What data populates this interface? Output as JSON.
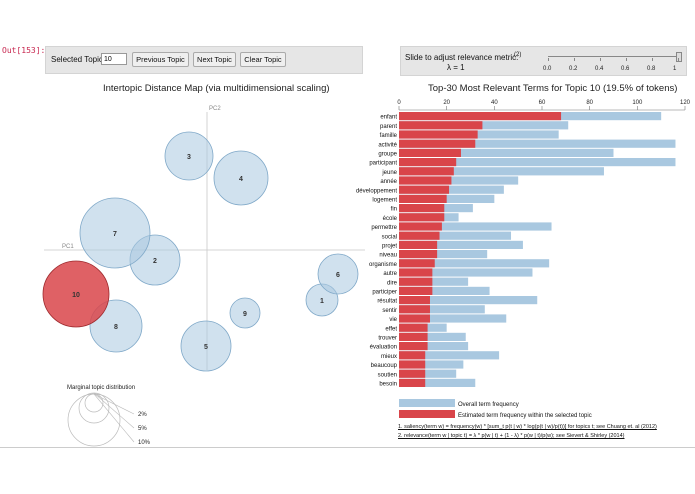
{
  "cell_prompt": "Out[153]:",
  "controls": {
    "selected_topic_label": "Selected Topic:",
    "selected_topic_value": "10",
    "prev_label": "Previous Topic",
    "next_label": "Next Topic",
    "clear_label": "Clear Topic",
    "slider_label": "Slide to adjust relevance metric:",
    "slider_help": "(2)",
    "lambda_label": "λ = 1",
    "lambda_value": 1,
    "slider_ticks": [
      "0.0",
      "0.2",
      "0.4",
      "0.6",
      "0.8",
      "1"
    ]
  },
  "left": {
    "title": "Intertopic Distance Map (via multidimensional scaling)",
    "pc1": "PC1",
    "pc2": "PC2",
    "bubbles": [
      {
        "label": "1",
        "color": "#a9c8e0",
        "selected": false
      },
      {
        "label": "2",
        "color": "#a9c8e0",
        "selected": false
      },
      {
        "label": "3",
        "color": "#a9c8e0",
        "selected": false
      },
      {
        "label": "4",
        "color": "#a9c8e0",
        "selected": false
      },
      {
        "label": "5",
        "color": "#a9c8e0",
        "selected": false
      },
      {
        "label": "6",
        "color": "#a9c8e0",
        "selected": false
      },
      {
        "label": "7",
        "color": "#a9c8e0",
        "selected": false
      },
      {
        "label": "8",
        "color": "#a9c8e0",
        "selected": false
      },
      {
        "label": "9",
        "color": "#a9c8e0",
        "selected": false
      },
      {
        "label": "10",
        "color": "#d9454a",
        "selected": true
      }
    ],
    "marginal_title": "Marginal topic distribution",
    "marginal_labels": [
      "2%",
      "5%",
      "10%"
    ]
  },
  "right": {
    "title": "Top-30 Most Relevant Terms for Topic 10 (19.5% of tokens)",
    "chart_data": {
      "type": "bar",
      "orientation": "horizontal",
      "title": "Top-30 Most Relevant Terms for Topic 10 (19.5% of tokens)",
      "xlim": [
        0,
        120
      ],
      "xticks": [
        0,
        20,
        40,
        60,
        80,
        100,
        120
      ],
      "categories": [
        "enfant",
        "parent",
        "famille",
        "activité",
        "groupe",
        "participant",
        "jeune",
        "année",
        "développement",
        "logement",
        "fin",
        "école",
        "permettre",
        "social",
        "projet",
        "niveau",
        "organisme",
        "autre",
        "dire",
        "participer",
        "résultat",
        "sentir",
        "vie",
        "effet",
        "trouver",
        "évaluation",
        "mieux",
        "beaucoup",
        "soutien",
        "besoin"
      ],
      "series": [
        {
          "name": "Overall term frequency",
          "color": "#a9c8e0",
          "values": [
            110,
            71,
            67,
            116,
            90,
            116,
            86,
            50,
            44,
            40,
            31,
            25,
            64,
            47,
            52,
            37,
            63,
            56,
            29,
            38,
            58,
            36,
            45,
            20,
            28,
            29,
            42,
            27,
            24,
            32
          ]
        },
        {
          "name": "Estimated term frequency within the selected topic",
          "color": "#d9454a",
          "values": [
            68,
            35,
            33,
            32,
            26,
            24,
            23,
            22,
            21,
            20,
            19,
            19,
            18,
            17,
            16,
            16,
            15,
            14,
            14,
            14,
            13,
            13,
            13,
            12,
            12,
            12,
            11,
            11,
            11,
            11
          ]
        }
      ]
    },
    "legend_overall": "Overall term frequency",
    "legend_estimated": "Estimated term frequency within the selected topic",
    "note1": "1. saliency(term w) = frequency(w) * [sum_t p(t | w) * log(p(t | w)/p(t))] for topics t; see Chuang et. al (2012)",
    "note2": "2. relevance(term w | topic t) = λ * p(w | t) + (1 - λ) * p(w | t)/p(w); see Sievert & Shirley (2014)"
  }
}
